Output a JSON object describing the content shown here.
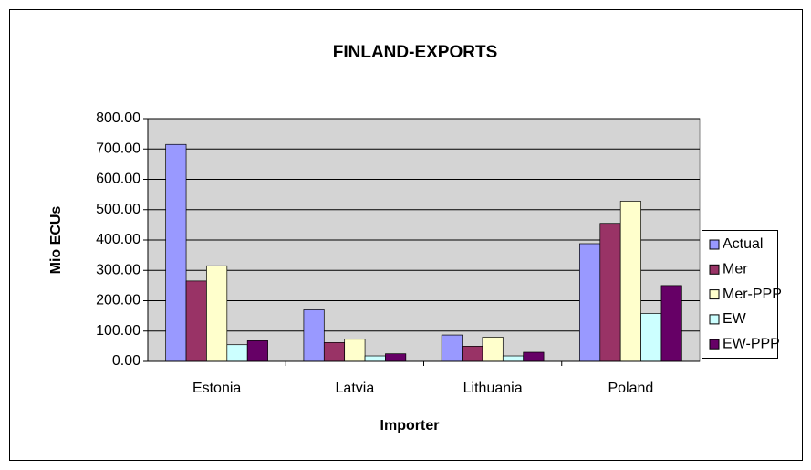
{
  "chart_data": {
    "type": "bar",
    "title": "FINLAND-EXPORTS",
    "x_label": "Importer",
    "y_label": "Mio ECUs",
    "categories": [
      "Estonia",
      "Latvia",
      "Lithuania",
      "Poland"
    ],
    "series": [
      {
        "name": "Actual",
        "color": "#9999ff",
        "values": [
          715,
          170,
          87,
          388
        ]
      },
      {
        "name": "Mer",
        "color": "#993366",
        "values": [
          265,
          62,
          50,
          455
        ]
      },
      {
        "name": "Mer-PPP",
        "color": "#ffffcc",
        "values": [
          315,
          73,
          80,
          528
        ]
      },
      {
        "name": "EW",
        "color": "#ccffff",
        "values": [
          55,
          18,
          18,
          158
        ]
      },
      {
        "name": "EW-PPP",
        "color": "#660066",
        "values": [
          68,
          25,
          30,
          250
        ]
      }
    ],
    "ylim": [
      0,
      800
    ],
    "yticks": [
      {
        "value": 0,
        "label": "0.00"
      },
      {
        "value": 100,
        "label": "100.00"
      },
      {
        "value": 200,
        "label": "200.00"
      },
      {
        "value": 300,
        "label": "300.00"
      },
      {
        "value": 400,
        "label": "400.00"
      },
      {
        "value": 500,
        "label": "500.00"
      },
      {
        "value": 600,
        "label": "600.00"
      },
      {
        "value": 700,
        "label": "700.00"
      },
      {
        "value": 800,
        "label": "800.00"
      }
    ],
    "grid": true,
    "legend": "right"
  }
}
